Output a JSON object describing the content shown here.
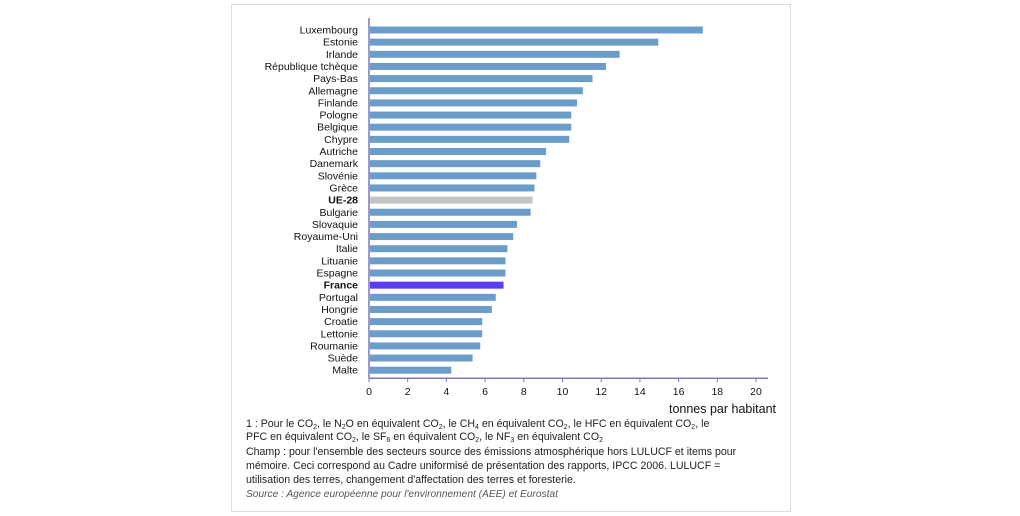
{
  "chart_data": {
    "type": "bar",
    "orientation": "horizontal",
    "categories": [
      "Luxembourg",
      "Estonie",
      "Irlande",
      "République tchèque",
      "Pays-Bas",
      "Allemagne",
      "Finlande",
      "Pologne",
      "Belgique",
      "Chypre",
      "Autriche",
      "Danemark",
      "Slovénie",
      "Grèce",
      "UE-28",
      "Bulgarie",
      "Slovaquie",
      "Royaume-Uni",
      "Italie",
      "Lituanie",
      "Espagne",
      "France",
      "Portugal",
      "Hongrie",
      "Croatie",
      "Lettonie",
      "Roumanie",
      "Suède",
      "Malte"
    ],
    "values": [
      17.2,
      14.9,
      12.9,
      12.2,
      11.5,
      11.0,
      10.7,
      10.4,
      10.4,
      10.3,
      9.1,
      8.8,
      8.6,
      8.5,
      8.4,
      8.3,
      7.6,
      7.4,
      7.1,
      7.0,
      7.0,
      6.9,
      6.5,
      6.3,
      5.8,
      5.8,
      5.7,
      5.3,
      4.2
    ],
    "highlight": {
      "UE-28": "#c4c4c4",
      "France": "#5b3cf0"
    },
    "bold_categories": [
      "UE-28",
      "France"
    ],
    "bar_color": "#6b9dc8",
    "axis_color": "#7b78b8",
    "xlim": [
      0,
      20
    ],
    "xticks": [
      0,
      2,
      4,
      6,
      8,
      10,
      12,
      14,
      16,
      18,
      20
    ],
    "xlabel": "tonnes par habitant",
    "ylabel": "",
    "title": "",
    "grid": false
  },
  "notes": {
    "n1": {
      "prefix": "1 : Pour le CO",
      "s1": "2",
      "t1": ", le N",
      "s2": "2",
      "t2": "O en équivalent CO",
      "s3": "2",
      "t3": ", le CH",
      "s4": "4",
      "t4": " en équivalent CO",
      "s5": "2",
      "t5": ", le HFC en équivalent CO",
      "s6": "2",
      "t6": ", le"
    },
    "n2": {
      "t1": "PFC en équivalent CO",
      "s1": "2",
      "t2": ", le SF",
      "s2": "6",
      "t3": " en équivalent CO",
      "s3": "2",
      "t4": ", le NF",
      "s4": "3",
      "t5": " en équivalent CO",
      "s5": "2"
    },
    "champ1": "Champ : pour l'ensemble des secteurs source des émissions atmosphérique hors LULUCF et items pour",
    "champ2": "mémoire. Ceci correspond au Cadre uniformisé de présentation des rapports, IPCC 2006. LULUCF =",
    "champ3": "utilisation des terres, changement d'affectation des terres et foresterie.",
    "source": "Source : Agence européenne pour l'environnement (AEE) et Eurostat"
  }
}
